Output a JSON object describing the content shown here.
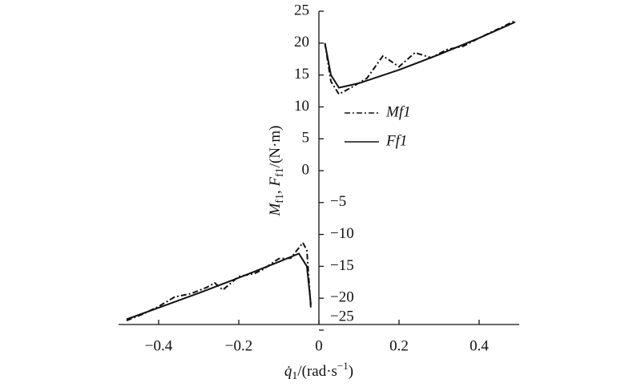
{
  "chart_data": {
    "type": "line",
    "x_label_parts": [
      "q̇",
      "1",
      "/(rad·s",
      "−1",
      ")"
    ],
    "y_label_parts": [
      "M",
      "f1",
      ", ",
      "F",
      "f1",
      "/(N·m)"
    ],
    "xlim": [
      -0.5,
      0.5
    ],
    "ylim": [
      -25,
      25
    ],
    "xticks": [
      {
        "value": -0.4,
        "label": "−0.4"
      },
      {
        "value": -0.2,
        "label": "−0.2"
      },
      0,
      0.2,
      0.4
    ],
    "yticks": [
      25,
      20,
      15,
      10,
      5,
      0,
      {
        "value": -5,
        "label": "−5"
      },
      {
        "value": -10,
        "label": "−10"
      },
      {
        "value": -15,
        "label": "−15"
      },
      {
        "value": -20,
        "label": "−20"
      },
      {
        "value": -25,
        "label": "−25"
      }
    ],
    "series": [
      {
        "name": "Mf1",
        "color": "#111111",
        "dash": "dash-dot",
        "x": [
          -0.48,
          -0.44,
          -0.4,
          -0.36,
          -0.32,
          -0.28,
          -0.26,
          -0.24,
          -0.2,
          -0.16,
          -0.14,
          -0.1,
          -0.07,
          -0.04,
          -0.03,
          -0.02,
          null,
          0.015,
          0.03,
          0.05,
          0.08,
          0.12,
          0.16,
          0.2,
          0.24,
          0.28,
          0.32,
          0.36,
          0.4,
          0.45,
          0.49
        ],
        "values": [
          -23.5,
          -22.5,
          -21.3,
          -19.8,
          -19.3,
          -18.3,
          -17.6,
          -18.7,
          -16.6,
          -16.1,
          -15.5,
          -13.8,
          -13.7,
          -11.3,
          -12.5,
          -21.7,
          null,
          20,
          14,
          12,
          13,
          14.5,
          18,
          16.3,
          18.5,
          17.7,
          19,
          19.5,
          20.8,
          22.3,
          23.5
        ]
      },
      {
        "name": "Ff1",
        "color": "#111111",
        "dash": "solid",
        "x": [
          -0.48,
          -0.4,
          -0.3,
          -0.2,
          -0.1,
          -0.05,
          -0.03,
          -0.02,
          null,
          0.015,
          0.03,
          0.05,
          0.1,
          0.2,
          0.3,
          0.4,
          0.49
        ],
        "values": [
          -23.3,
          -21.5,
          -19.2,
          -16.8,
          -14.3,
          -13,
          -15,
          -21,
          null,
          20,
          15,
          13,
          13.7,
          15.8,
          18.2,
          20.8,
          23.3
        ]
      }
    ]
  }
}
